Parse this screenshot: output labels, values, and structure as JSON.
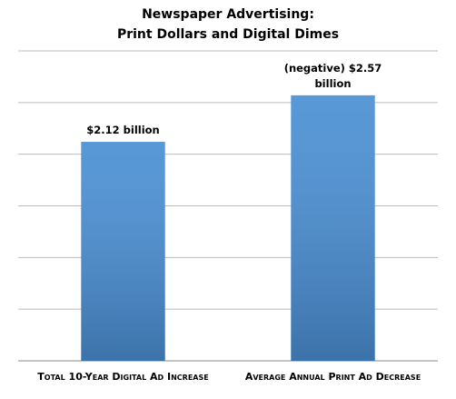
{
  "chart_data": {
    "type": "bar",
    "title": [
      "Newspaper Advertising:",
      "Print Dollars and Digital Dimes"
    ],
    "categories": [
      "Total 10-Year Digital Ad Increase",
      "Average Annual Print Ad Decrease"
    ],
    "values": [
      2.12,
      2.57
    ],
    "value_labels": [
      "$2.12 billion",
      "(negative) $2.57 billion"
    ],
    "color": "#4a8fd4",
    "ylim": [
      0,
      3
    ],
    "yticks": [
      0,
      0.5,
      1,
      1.5,
      2,
      2.5,
      3
    ],
    "grid": true
  }
}
